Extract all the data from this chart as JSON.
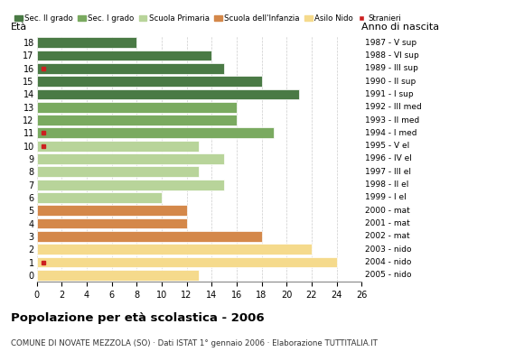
{
  "ages": [
    18,
    17,
    16,
    15,
    14,
    13,
    12,
    11,
    10,
    9,
    8,
    7,
    6,
    5,
    4,
    3,
    2,
    1,
    0
  ],
  "years": [
    "1987 - V sup",
    "1988 - VI sup",
    "1989 - III sup",
    "1990 - II sup",
    "1991 - I sup",
    "1992 - III med",
    "1993 - II med",
    "1994 - I med",
    "1995 - V el",
    "1996 - IV el",
    "1997 - III el",
    "1998 - II el",
    "1999 - I el",
    "2000 - mat",
    "2001 - mat",
    "2002 - mat",
    "2003 - nido",
    "2004 - nido",
    "2005 - nido"
  ],
  "values": [
    8,
    14,
    15,
    18,
    21,
    16,
    16,
    19,
    13,
    15,
    13,
    15,
    10,
    12,
    12,
    18,
    22,
    24,
    13
  ],
  "stranieri": [
    0,
    0,
    1,
    0,
    0,
    0,
    0,
    1,
    1,
    0,
    0,
    0,
    0,
    0,
    0,
    0,
    0,
    1,
    0
  ],
  "bar_colors": [
    "#4a7a45",
    "#4a7a45",
    "#4a7a45",
    "#4a7a45",
    "#4a7a45",
    "#7aaa60",
    "#7aaa60",
    "#7aaa60",
    "#b8d49a",
    "#b8d49a",
    "#b8d49a",
    "#b8d49a",
    "#b8d49a",
    "#d4884a",
    "#d4884a",
    "#d4884a",
    "#f5da8c",
    "#f5da8c",
    "#f5da8c"
  ],
  "legend_labels": [
    "Sec. II grado",
    "Sec. I grado",
    "Scuola Primaria",
    "Scuola dell'Infanzia",
    "Asilo Nido",
    "Stranieri"
  ],
  "legend_colors": [
    "#4a7a45",
    "#7aaa60",
    "#b8d49a",
    "#d4884a",
    "#f5da8c",
    "#cc2020"
  ],
  "title": "Popolazione per età scolastica - 2006",
  "subtitle": "COMUNE DI NOVATE MEZZOLA (SO) · Dati ISTAT 1° gennaio 2006 · Elaborazione TUTTITALIA.IT",
  "label_eta": "Età",
  "label_anno": "Anno di nascita",
  "xlim": [
    0,
    26
  ],
  "stranieri_color": "#cc2020",
  "background_color": "#ffffff",
  "grid_color": "#cccccc"
}
